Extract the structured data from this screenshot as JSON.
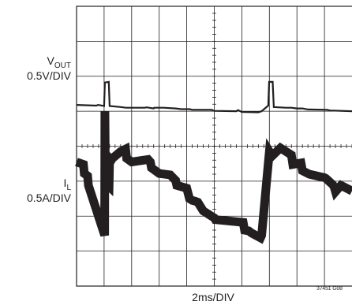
{
  "chart_data": {
    "type": "line",
    "grid": true,
    "x_axis": {
      "label": "2ms/DIV",
      "divisions": 10
    },
    "y_axis": {
      "divisions": 8
    },
    "figure_code": "37451 G08",
    "traces": [
      {
        "name_main": "V",
        "name_sub": "OUT",
        "scale": "0.5V/DIV",
        "color": "#231f20",
        "x": [
          0,
          0.72,
          0.78,
          1.0,
          1.03,
          1.17,
          1.2,
          1.6,
          1.8,
          2.48,
          2.54,
          2.8,
          2.82,
          3.12,
          3.16,
          3.6,
          3.8,
          4.1,
          4.2,
          4.9,
          5.0,
          5.8,
          5.86,
          6.0,
          6.6,
          6.72,
          6.96,
          6.99,
          7.12,
          7.16,
          7.6,
          7.8,
          8.0,
          8.2,
          8.4,
          9.1,
          9.2,
          10.0
        ],
        "y": [
          5.18,
          5.16,
          5.18,
          5.15,
          5.82,
          5.84,
          5.15,
          5.12,
          5.1,
          5.1,
          5.11,
          5.08,
          5.1,
          5.1,
          5.1,
          5.08,
          5.06,
          5.06,
          5.04,
          5.04,
          5.01,
          5.0,
          5.03,
          4.98,
          4.97,
          5.0,
          5.16,
          5.84,
          5.84,
          5.12,
          5.1,
          5.1,
          5.08,
          5.08,
          5.05,
          5.04,
          5.02,
          5.0
        ]
      },
      {
        "name_main": "I",
        "name_sub": "L",
        "scale": "0.5A/DIV",
        "color": "#231f20",
        "x": [
          0,
          0.25,
          0.28,
          0.4,
          0.43,
          1.0,
          1.02,
          1.03,
          1.05,
          1.18,
          1.2,
          1.26,
          1.3,
          1.6,
          1.78,
          1.82,
          2.0,
          2.6,
          2.68,
          2.72,
          3.0,
          3.4,
          3.6,
          3.64,
          4.0,
          4.1,
          4.2,
          4.3,
          4.4,
          4.6,
          5.0,
          5.04,
          6.05,
          6.1,
          6.25,
          6.35,
          6.68,
          6.72,
          7.0,
          7.1,
          7.4,
          7.8,
          7.85,
          8.15,
          8.2,
          8.45,
          9.0,
          9.05,
          9.3,
          9.35,
          9.4,
          9.6,
          10.0
        ],
        "y": [
          3.55,
          3.48,
          3.22,
          3.15,
          2.88,
          1.5,
          1.45,
          5.0,
          2.95,
          2.85,
          3.65,
          3.6,
          3.65,
          3.85,
          3.92,
          3.65,
          3.55,
          3.62,
          3.55,
          3.38,
          3.22,
          3.18,
          3.02,
          2.88,
          2.8,
          2.5,
          2.45,
          2.43,
          2.4,
          2.15,
          1.95,
          1.9,
          1.82,
          1.6,
          1.58,
          1.52,
          1.38,
          1.45,
          3.85,
          3.72,
          3.95,
          3.75,
          3.48,
          3.52,
          3.3,
          3.2,
          3.1,
          3.08,
          2.9,
          2.84,
          2.7,
          2.88,
          2.72
        ]
      }
    ]
  }
}
